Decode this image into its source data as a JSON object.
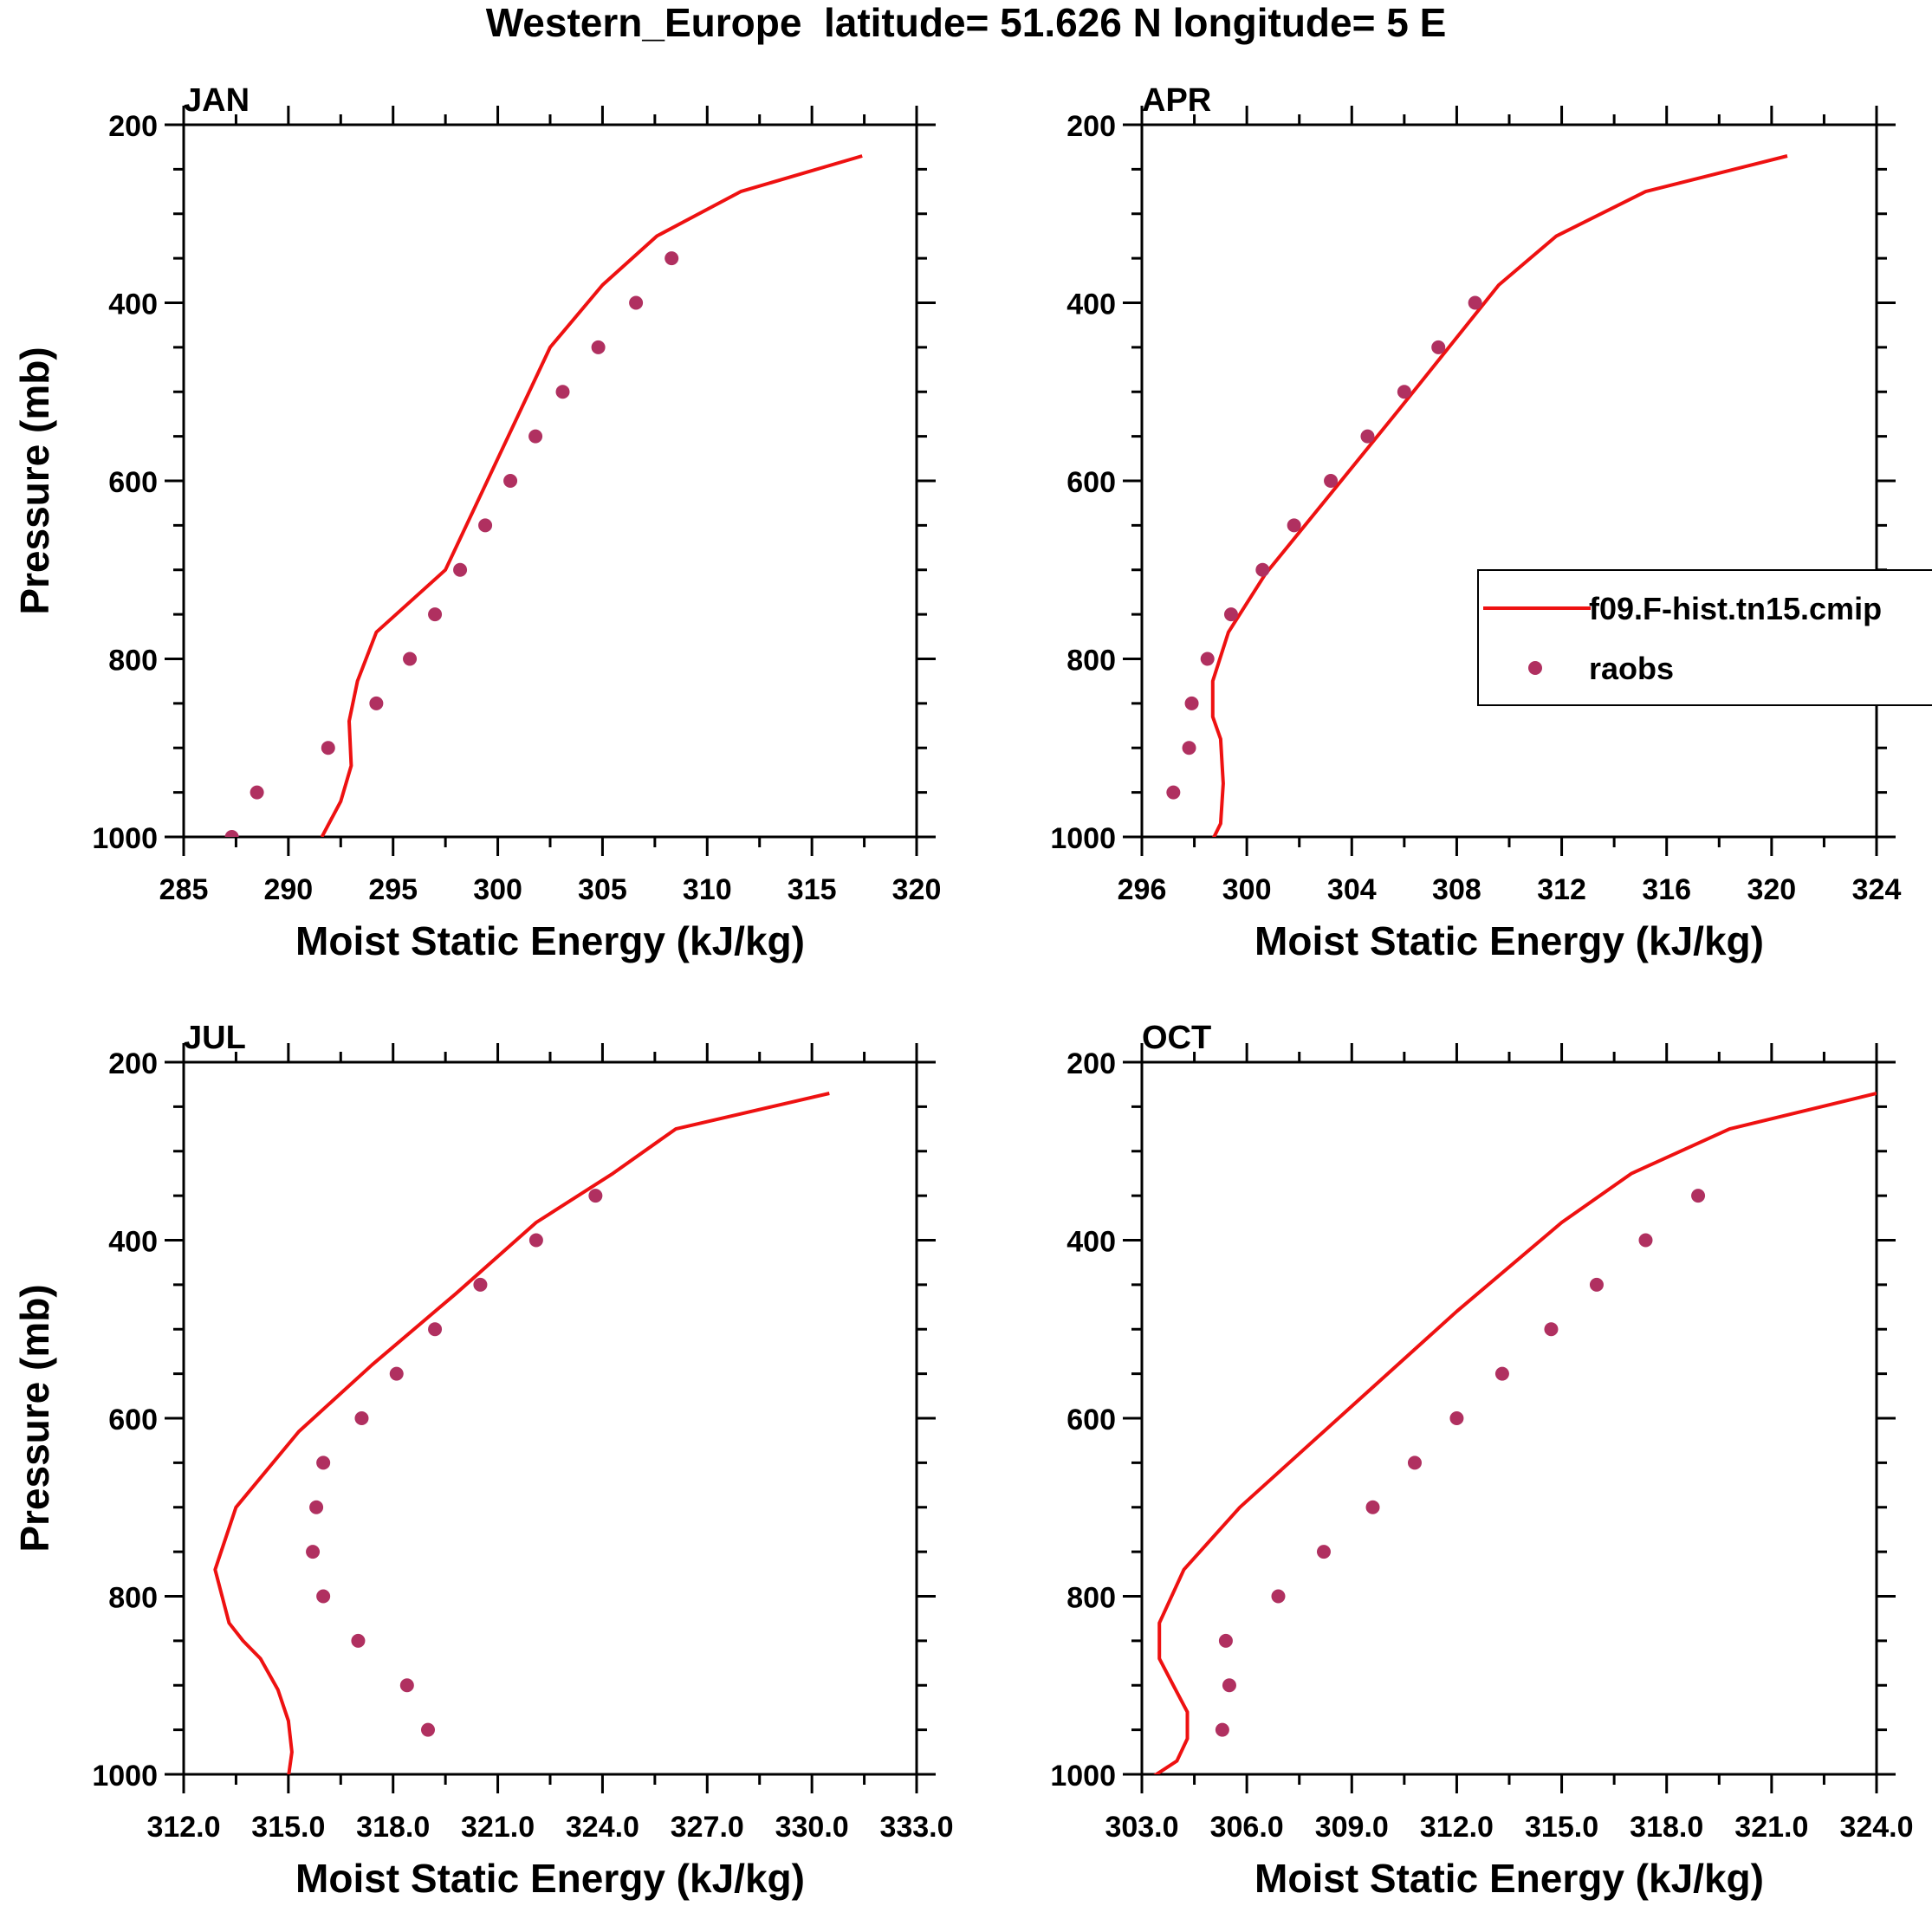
{
  "figure_title": "Western_Europe  latitude= 51.626 N longitude= 5 E",
  "colors": {
    "model_line": "#ee1111",
    "obs_marker": "#b03060",
    "axis": "#000000"
  },
  "legend": {
    "entries": [
      {
        "label": "f09.F-hist.tn15.cmip",
        "style": "line",
        "color": "#ee1111"
      },
      {
        "label": "raobs",
        "style": "marker",
        "color": "#b03060"
      }
    ],
    "placement": "APR panel, right side, clipped at figure edge"
  },
  "chart_data": [
    {
      "type": "line+scatter",
      "panel": "JAN",
      "xlabel": "Moist Static Energy (kJ/kg)",
      "ylabel": "Pressure (mb)",
      "xlim": [
        285,
        320
      ],
      "ylim": [
        1000,
        200
      ],
      "xticks": [
        "285",
        "290",
        "295",
        "300",
        "305",
        "310",
        "315",
        "320"
      ],
      "xtick_values": [
        285,
        290,
        295,
        300,
        305,
        310,
        315,
        320
      ],
      "yticks": [
        "200",
        "400",
        "600",
        "800",
        "1000"
      ],
      "ytick_values": [
        200,
        400,
        600,
        800,
        1000
      ],
      "model": {
        "name": "f09.F-hist.tn15.cmip",
        "x": [
          291.6,
          292.5,
          293.0,
          292.9,
          293.3,
          294.2,
          297.5,
          302.5,
          305.0,
          307.6,
          311.6,
          317.4
        ],
        "y": [
          1000,
          960,
          920,
          870,
          825,
          770,
          700,
          450,
          380,
          325,
          275,
          235
        ]
      },
      "obs": {
        "name": "raobs",
        "x": [
          287.3,
          288.5,
          291.9,
          294.2,
          295.8,
          297.0,
          298.2,
          299.4,
          300.6,
          301.8,
          303.1,
          304.8,
          306.6,
          308.3
        ],
        "y": [
          1000,
          950,
          900,
          850,
          800,
          750,
          700,
          650,
          600,
          550,
          500,
          450,
          400,
          350
        ]
      }
    },
    {
      "type": "line+scatter",
      "panel": "APR",
      "xlabel": "Moist Static Energy (kJ/kg)",
      "ylabel": "",
      "xlim": [
        296,
        324
      ],
      "ylim": [
        1000,
        200
      ],
      "xticks": [
        "296",
        "300",
        "304",
        "308",
        "312",
        "316",
        "320",
        "324"
      ],
      "xtick_values": [
        296,
        300,
        304,
        308,
        312,
        316,
        320,
        324
      ],
      "yticks": [
        "200",
        "400",
        "600",
        "800",
        "1000"
      ],
      "ytick_values": [
        200,
        400,
        600,
        800,
        1000
      ],
      "model": {
        "name": "f09.F-hist.tn15.cmip",
        "x": [
          298.7,
          299.0,
          299.1,
          299.0,
          298.7,
          298.7,
          299.3,
          300.7,
          305.8,
          309.6,
          311.8,
          315.2,
          320.6
        ],
        "y": [
          1003,
          985,
          940,
          890,
          865,
          825,
          770,
          705,
          520,
          380,
          325,
          275,
          235
        ]
      },
      "obs": {
        "name": "raobs",
        "x": [
          297.2,
          297.8,
          297.9,
          298.5,
          299.4,
          300.6,
          301.8,
          303.2,
          304.6,
          306.0,
          307.3,
          308.7
        ],
        "y": [
          950,
          900,
          850,
          800,
          750,
          700,
          650,
          600,
          550,
          500,
          450,
          400
        ]
      }
    },
    {
      "type": "line+scatter",
      "panel": "JUL",
      "xlabel": "Moist Static Energy (kJ/kg)",
      "ylabel": "Pressure (mb)",
      "xlim": [
        312,
        333
      ],
      "ylim": [
        1000,
        200
      ],
      "xticks": [
        "312.0",
        "315.0",
        "318.0",
        "321.0",
        "324.0",
        "327.0",
        "330.0",
        "333.0"
      ],
      "xtick_values": [
        312,
        315,
        318,
        321,
        324,
        327,
        330,
        333
      ],
      "yticks": [
        "200",
        "400",
        "600",
        "800",
        "1000"
      ],
      "ytick_values": [
        200,
        400,
        600,
        800,
        1000
      ],
      "model": {
        "name": "f09.F-hist.tn15.cmip",
        "x": [
          315.0,
          315.1,
          315.0,
          314.7,
          314.2,
          313.7,
          313.3,
          312.9,
          313.5,
          315.3,
          317.4,
          319.8,
          322.1,
          324.3,
          326.1,
          330.5
        ],
        "y": [
          1003,
          975,
          940,
          905,
          870,
          850,
          830,
          770,
          700,
          615,
          540,
          460,
          380,
          325,
          275,
          235
        ]
      },
      "obs": {
        "name": "raobs",
        "x": [
          319.0,
          318.4,
          317.0,
          316.0,
          315.7,
          315.8,
          316.0,
          317.1,
          318.1,
          319.2,
          320.5,
          322.1,
          323.8
        ],
        "y": [
          950,
          900,
          850,
          800,
          750,
          700,
          650,
          600,
          550,
          500,
          450,
          400,
          350
        ]
      }
    },
    {
      "type": "line+scatter",
      "panel": "OCT",
      "xlabel": "Moist Static Energy (kJ/kg)",
      "ylabel": "",
      "xlim": [
        303,
        324
      ],
      "ylim": [
        1000,
        200
      ],
      "xticks": [
        "303.0",
        "306.0",
        "309.0",
        "312.0",
        "315.0",
        "318.0",
        "321.0",
        "324.0"
      ],
      "xtick_values": [
        303,
        306,
        309,
        312,
        315,
        318,
        321,
        324
      ],
      "yticks": [
        "200",
        "400",
        "600",
        "800",
        "1000"
      ],
      "ytick_values": [
        200,
        400,
        600,
        800,
        1000
      ],
      "model": {
        "name": "f09.F-hist.tn15.cmip",
        "x": [
          303.3,
          304.0,
          304.3,
          304.3,
          303.9,
          303.5,
          303.5,
          304.2,
          305.8,
          312.0,
          315.0,
          317.0,
          319.8,
          324.0
        ],
        "y": [
          1003,
          985,
          960,
          930,
          900,
          870,
          830,
          770,
          700,
          480,
          380,
          325,
          275,
          235
        ]
      },
      "obs": {
        "name": "raobs",
        "x": [
          305.3,
          305.5,
          305.4,
          306.9,
          308.2,
          309.6,
          310.8,
          312.0,
          313.3,
          314.7,
          316.0,
          317.4,
          318.9
        ],
        "y": [
          950,
          900,
          850,
          800,
          750,
          700,
          650,
          600,
          550,
          500,
          450,
          400,
          350
        ]
      }
    }
  ]
}
